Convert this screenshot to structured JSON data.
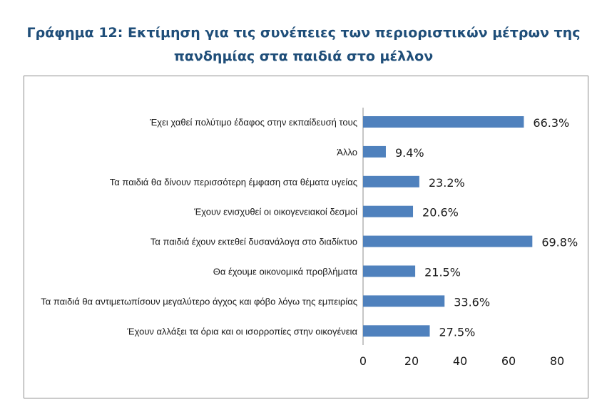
{
  "title": {
    "line1": "Γράφημα 12: Εκτίμηση για τις συνέπειες των περιοριστικών μέτρων της",
    "line2": "πανδημίας στα παιδιά στο μέλλον"
  },
  "colors": {
    "title": "#1f4e79",
    "bar": "#4f81bd",
    "axis": "#8c8c8c"
  },
  "chart_data": {
    "type": "bar",
    "orientation": "horizontal",
    "categories": [
      "Έχει χαθεί πολύτιμο έδαφος στην εκπαίδευσή τους",
      "Άλλο",
      "Τα παιδιά θα δίνουν περισσότερη έμφαση στα θέματα υγείας",
      "Έχουν ενισχυθεί οι οικογενειακοί δεσμοί",
      "Τα παιδιά έχουν εκτεθεί δυσανάλογα στο διαδίκτυο",
      "Θα έχουμε οικονομικά προβλήματα",
      "Τα παιδιά θα αντιμετωπίσουν μεγαλύτερο άγχος και φόβο λόγω της εμπειρίας",
      "Έχουν αλλάξει τα όρια και οι ισορροπίες στην οικογένεια"
    ],
    "values": [
      66.3,
      9.4,
      23.2,
      20.6,
      69.8,
      21.5,
      33.6,
      27.5
    ],
    "value_labels": [
      "66.3%",
      "9.4%",
      "23.2%",
      "20.6%",
      "69.8%",
      "21.5%",
      "33.6%",
      "27.5%"
    ],
    "xlim": [
      0,
      80
    ],
    "xticks": [
      "0",
      "20",
      "40",
      "60",
      "80"
    ],
    "grid": false,
    "legend": "none"
  }
}
